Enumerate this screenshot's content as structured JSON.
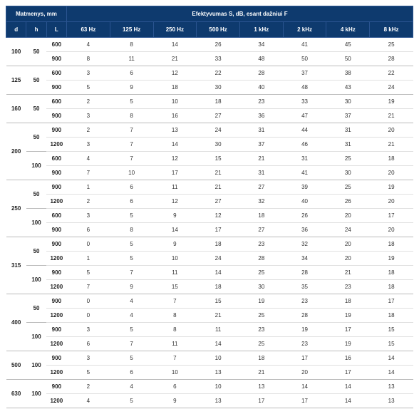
{
  "headers": {
    "dim_group": "Matmenys, mm",
    "eff_group": "Efektyvumas S, dB, esant dažniui F",
    "d": "d",
    "h": "h",
    "L": "L",
    "freqs": [
      "63 Hz",
      "125 Hz",
      "250 Hz",
      "500 Hz",
      "1 kHz",
      "2 kHz",
      "4 kHz",
      "8 kHz"
    ]
  },
  "colors": {
    "header_bg": "#0e3a6e",
    "header_fg": "#ffffff",
    "row_border": "#e0e0e0"
  },
  "groups": [
    {
      "d": "100",
      "sub": [
        {
          "h": "50",
          "rows": [
            {
              "L": "600",
              "v": [
                4,
                8,
                14,
                26,
                34,
                41,
                45,
                25
              ]
            },
            {
              "L": "900",
              "v": [
                8,
                11,
                21,
                33,
                48,
                50,
                50,
                28
              ]
            }
          ]
        }
      ]
    },
    {
      "d": "125",
      "sub": [
        {
          "h": "50",
          "rows": [
            {
              "L": "600",
              "v": [
                3,
                6,
                12,
                22,
                28,
                37,
                38,
                22
              ]
            },
            {
              "L": "900",
              "v": [
                5,
                9,
                18,
                30,
                40,
                48,
                43,
                24
              ]
            }
          ]
        }
      ]
    },
    {
      "d": "160",
      "sub": [
        {
          "h": "50",
          "rows": [
            {
              "L": "600",
              "v": [
                2,
                5,
                10,
                18,
                23,
                33,
                30,
                19
              ]
            },
            {
              "L": "900",
              "v": [
                3,
                8,
                16,
                27,
                36,
                47,
                37,
                21
              ]
            }
          ]
        }
      ]
    },
    {
      "d": "200",
      "sub": [
        {
          "h": "50",
          "rows": [
            {
              "L": "900",
              "v": [
                2,
                7,
                13,
                24,
                31,
                44,
                31,
                20
              ]
            },
            {
              "L": "1200",
              "v": [
                3,
                7,
                14,
                30,
                37,
                46,
                31,
                21
              ]
            }
          ]
        },
        {
          "h": "100",
          "rows": [
            {
              "L": "600",
              "v": [
                4,
                7,
                12,
                15,
                21,
                31,
                25,
                18
              ]
            },
            {
              "L": "900",
              "v": [
                7,
                10,
                17,
                21,
                31,
                41,
                30,
                20
              ]
            }
          ]
        }
      ]
    },
    {
      "d": "250",
      "sub": [
        {
          "h": "50",
          "rows": [
            {
              "L": "900",
              "v": [
                1,
                6,
                11,
                21,
                27,
                39,
                25,
                19
              ]
            },
            {
              "L": "1200",
              "v": [
                2,
                6,
                12,
                27,
                32,
                40,
                26,
                20
              ]
            }
          ]
        },
        {
          "h": "100",
          "rows": [
            {
              "L": "600",
              "v": [
                3,
                5,
                9,
                12,
                18,
                26,
                20,
                17
              ]
            },
            {
              "L": "900",
              "v": [
                6,
                8,
                14,
                17,
                27,
                36,
                24,
                20
              ]
            }
          ]
        }
      ]
    },
    {
      "d": "315",
      "sub": [
        {
          "h": "50",
          "rows": [
            {
              "L": "900",
              "v": [
                0,
                5,
                9,
                18,
                23,
                32,
                20,
                18
              ]
            },
            {
              "L": "1200",
              "v": [
                1,
                5,
                10,
                24,
                28,
                34,
                20,
                19
              ]
            }
          ]
        },
        {
          "h": "100",
          "rows": [
            {
              "L": "900",
              "v": [
                5,
                7,
                11,
                14,
                25,
                28,
                21,
                18
              ]
            },
            {
              "L": "1200",
              "v": [
                7,
                9,
                15,
                18,
                30,
                35,
                23,
                18
              ]
            }
          ]
        }
      ]
    },
    {
      "d": "400",
      "sub": [
        {
          "h": "50",
          "rows": [
            {
              "L": "900",
              "v": [
                0,
                4,
                7,
                15,
                19,
                23,
                18,
                17
              ]
            },
            {
              "L": "1200",
              "v": [
                0,
                4,
                8,
                21,
                25,
                28,
                19,
                18
              ]
            }
          ]
        },
        {
          "h": "100",
          "rows": [
            {
              "L": "900",
              "v": [
                3,
                5,
                8,
                11,
                23,
                19,
                17,
                15
              ]
            },
            {
              "L": "1200",
              "v": [
                6,
                7,
                11,
                14,
                25,
                23,
                19,
                15
              ]
            }
          ]
        }
      ]
    },
    {
      "d": "500",
      "sub": [
        {
          "h": "100",
          "rows": [
            {
              "L": "900",
              "v": [
                3,
                5,
                7,
                10,
                18,
                17,
                16,
                14
              ]
            },
            {
              "L": "1200",
              "v": [
                5,
                6,
                10,
                13,
                21,
                20,
                17,
                14
              ]
            }
          ]
        }
      ]
    },
    {
      "d": "630",
      "sub": [
        {
          "h": "100",
          "rows": [
            {
              "L": "900",
              "v": [
                2,
                4,
                6,
                10,
                13,
                14,
                14,
                13
              ]
            },
            {
              "L": "1200",
              "v": [
                4,
                5,
                9,
                13,
                17,
                17,
                14,
                13
              ]
            }
          ]
        }
      ]
    }
  ]
}
